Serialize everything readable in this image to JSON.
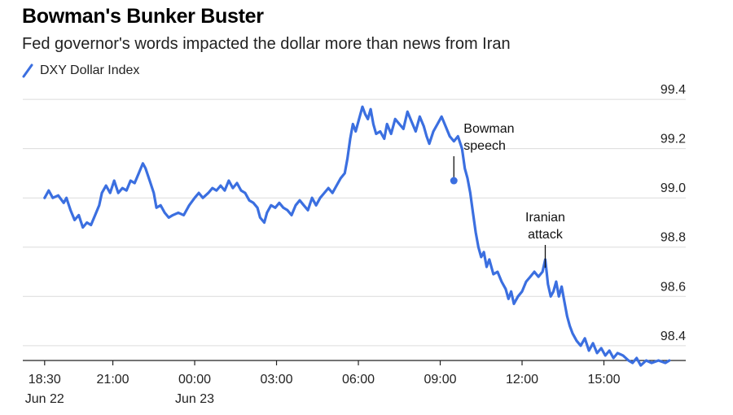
{
  "chart_data": {
    "type": "line",
    "title": "Bowman's Bunker Buster",
    "subtitle": "Fed governor's words impacted the dollar more than news from Iran",
    "legend": "DXY Dollar Index",
    "series_color": "#3b6fe0",
    "ylim": [
      98.34,
      99.44
    ],
    "y_ticks": [
      {
        "value": 99.4,
        "label": "99.4"
      },
      {
        "value": 99.2,
        "label": "99.2"
      },
      {
        "value": 99.0,
        "label": "99.0"
      },
      {
        "value": 98.8,
        "label": "98.8"
      },
      {
        "value": 98.6,
        "label": "98.6"
      },
      {
        "value": 98.4,
        "label": "98.4"
      }
    ],
    "x_unit": "hours since Jun 22 18:30",
    "xlim": [
      -0.8,
      23.5
    ],
    "x_ticks": [
      {
        "value": 0,
        "label": "18:30",
        "sublabel": "Jun 22"
      },
      {
        "value": 2.5,
        "label": "21:00",
        "sublabel": ""
      },
      {
        "value": 5.5,
        "label": "00:00",
        "sublabel": "Jun 23"
      },
      {
        "value": 8.5,
        "label": "03:00",
        "sublabel": ""
      },
      {
        "value": 11.5,
        "label": "06:00",
        "sublabel": ""
      },
      {
        "value": 14.5,
        "label": "09:00",
        "sublabel": ""
      },
      {
        "value": 17.5,
        "label": "12:00",
        "sublabel": ""
      },
      {
        "value": 20.5,
        "label": "15:00",
        "sublabel": ""
      }
    ],
    "points": [
      [
        0,
        99.0
      ],
      [
        0.15,
        99.03
      ],
      [
        0.3,
        99.0
      ],
      [
        0.5,
        99.01
      ],
      [
        0.7,
        98.98
      ],
      [
        0.8,
        99.0
      ],
      [
        0.95,
        98.95
      ],
      [
        1.1,
        98.91
      ],
      [
        1.25,
        98.93
      ],
      [
        1.4,
        98.88
      ],
      [
        1.55,
        98.9
      ],
      [
        1.7,
        98.89
      ],
      [
        1.85,
        98.93
      ],
      [
        2.0,
        98.97
      ],
      [
        2.1,
        99.02
      ],
      [
        2.25,
        99.05
      ],
      [
        2.4,
        99.02
      ],
      [
        2.55,
        99.07
      ],
      [
        2.7,
        99.02
      ],
      [
        2.85,
        99.04
      ],
      [
        3.0,
        99.03
      ],
      [
        3.15,
        99.07
      ],
      [
        3.3,
        99.06
      ],
      [
        3.45,
        99.1
      ],
      [
        3.6,
        99.14
      ],
      [
        3.7,
        99.12
      ],
      [
        3.85,
        99.07
      ],
      [
        4.0,
        99.02
      ],
      [
        4.1,
        98.96
      ],
      [
        4.25,
        98.97
      ],
      [
        4.4,
        98.94
      ],
      [
        4.55,
        98.92
      ],
      [
        4.7,
        98.93
      ],
      [
        4.9,
        98.94
      ],
      [
        5.1,
        98.93
      ],
      [
        5.3,
        98.97
      ],
      [
        5.5,
        99.0
      ],
      [
        5.65,
        99.02
      ],
      [
        5.8,
        99.0
      ],
      [
        6.0,
        99.02
      ],
      [
        6.15,
        99.04
      ],
      [
        6.3,
        99.03
      ],
      [
        6.45,
        99.05
      ],
      [
        6.6,
        99.03
      ],
      [
        6.75,
        99.07
      ],
      [
        6.9,
        99.04
      ],
      [
        7.05,
        99.06
      ],
      [
        7.2,
        99.03
      ],
      [
        7.35,
        99.02
      ],
      [
        7.5,
        98.99
      ],
      [
        7.65,
        98.98
      ],
      [
        7.8,
        98.96
      ],
      [
        7.9,
        98.92
      ],
      [
        8.05,
        98.9
      ],
      [
        8.15,
        98.94
      ],
      [
        8.3,
        98.97
      ],
      [
        8.45,
        98.96
      ],
      [
        8.6,
        98.98
      ],
      [
        8.75,
        98.96
      ],
      [
        8.9,
        98.95
      ],
      [
        9.05,
        98.93
      ],
      [
        9.2,
        98.97
      ],
      [
        9.35,
        98.99
      ],
      [
        9.5,
        98.97
      ],
      [
        9.65,
        98.95
      ],
      [
        9.8,
        99.0
      ],
      [
        9.95,
        98.97
      ],
      [
        10.1,
        99.0
      ],
      [
        10.25,
        99.02
      ],
      [
        10.4,
        99.04
      ],
      [
        10.55,
        99.02
      ],
      [
        10.7,
        99.05
      ],
      [
        10.85,
        99.08
      ],
      [
        11.0,
        99.1
      ],
      [
        11.1,
        99.16
      ],
      [
        11.2,
        99.24
      ],
      [
        11.3,
        99.3
      ],
      [
        11.4,
        99.27
      ],
      [
        11.5,
        99.31
      ],
      [
        11.65,
        99.37
      ],
      [
        11.75,
        99.34
      ],
      [
        11.85,
        99.32
      ],
      [
        11.95,
        99.36
      ],
      [
        12.05,
        99.3
      ],
      [
        12.15,
        99.26
      ],
      [
        12.3,
        99.27
      ],
      [
        12.45,
        99.24
      ],
      [
        12.55,
        99.3
      ],
      [
        12.7,
        99.26
      ],
      [
        12.85,
        99.32
      ],
      [
        13.0,
        99.3
      ],
      [
        13.15,
        99.28
      ],
      [
        13.3,
        99.35
      ],
      [
        13.45,
        99.31
      ],
      [
        13.6,
        99.27
      ],
      [
        13.75,
        99.33
      ],
      [
        13.9,
        99.29
      ],
      [
        14.0,
        99.25
      ],
      [
        14.1,
        99.22
      ],
      [
        14.25,
        99.27
      ],
      [
        14.4,
        99.3
      ],
      [
        14.55,
        99.33
      ],
      [
        14.7,
        99.29
      ],
      [
        14.85,
        99.25
      ],
      [
        15.0,
        99.23
      ],
      [
        15.15,
        99.25
      ],
      [
        15.3,
        99.2
      ],
      [
        15.4,
        99.12
      ],
      [
        15.5,
        99.08
      ],
      [
        15.6,
        99.02
      ],
      [
        15.7,
        98.94
      ],
      [
        15.8,
        98.86
      ],
      [
        15.9,
        98.8
      ],
      [
        16.0,
        98.76
      ],
      [
        16.1,
        98.78
      ],
      [
        16.2,
        98.72
      ],
      [
        16.3,
        98.75
      ],
      [
        16.45,
        98.69
      ],
      [
        16.6,
        98.7
      ],
      [
        16.75,
        98.66
      ],
      [
        16.9,
        98.63
      ],
      [
        17.0,
        98.59
      ],
      [
        17.1,
        98.62
      ],
      [
        17.2,
        98.57
      ],
      [
        17.35,
        98.6
      ],
      [
        17.5,
        98.62
      ],
      [
        17.65,
        98.66
      ],
      [
        17.8,
        98.68
      ],
      [
        17.95,
        98.7
      ],
      [
        18.1,
        98.68
      ],
      [
        18.25,
        98.7
      ],
      [
        18.35,
        98.75
      ],
      [
        18.45,
        98.65
      ],
      [
        18.55,
        98.6
      ],
      [
        18.65,
        98.62
      ],
      [
        18.75,
        98.66
      ],
      [
        18.85,
        98.6
      ],
      [
        18.95,
        98.64
      ],
      [
        19.05,
        98.58
      ],
      [
        19.15,
        98.52
      ],
      [
        19.25,
        98.48
      ],
      [
        19.35,
        98.45
      ],
      [
        19.5,
        98.42
      ],
      [
        19.65,
        98.4
      ],
      [
        19.8,
        98.43
      ],
      [
        19.95,
        98.38
      ],
      [
        20.1,
        98.41
      ],
      [
        20.25,
        98.37
      ],
      [
        20.4,
        98.39
      ],
      [
        20.55,
        98.36
      ],
      [
        20.7,
        98.38
      ],
      [
        20.85,
        98.35
      ],
      [
        21.0,
        98.37
      ],
      [
        21.2,
        98.36
      ],
      [
        21.4,
        98.34
      ],
      [
        21.55,
        98.33
      ],
      [
        21.7,
        98.35
      ],
      [
        21.85,
        98.32
      ],
      [
        22.05,
        98.34
      ],
      [
        22.25,
        98.33
      ],
      [
        22.5,
        98.34
      ],
      [
        22.75,
        98.33
      ],
      [
        22.9,
        98.34
      ]
    ],
    "annotations": [
      {
        "label_lines": [
          "Bowman",
          "speech"
        ],
        "x": 15.0,
        "y": 99.07,
        "marker": true
      },
      {
        "label_lines": [
          "Iranian",
          "attack"
        ],
        "x": 18.35,
        "y": 98.71,
        "marker": false
      }
    ]
  }
}
